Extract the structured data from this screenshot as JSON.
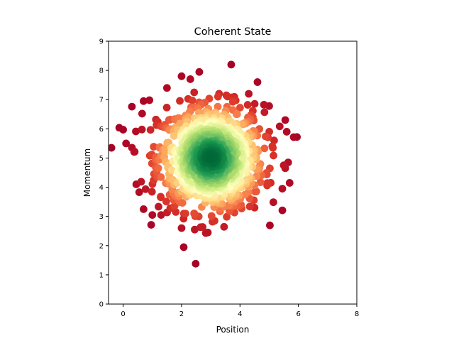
{
  "chart_data": {
    "type": "scatter",
    "title": "Coherent State",
    "xlabel": "Position",
    "ylabel": "Momentum",
    "xlim": [
      -0.5,
      8
    ],
    "ylim": [
      0,
      9
    ],
    "xticks": [
      "0",
      "2",
      "4",
      "6",
      "8"
    ],
    "xtick_values": [
      0,
      2,
      4,
      6,
      8
    ],
    "yticks": [
      "0",
      "1",
      "2",
      "3",
      "4",
      "5",
      "6",
      "7",
      "8",
      "9"
    ],
    "ytick_values": [
      0,
      1,
      2,
      3,
      4,
      5,
      6,
      7,
      8,
      9
    ],
    "grid": false,
    "legend": "none",
    "colormap": "RdYlGn",
    "color_encoding": "density: low (red) to high (green)",
    "distribution": {
      "kind": "gaussian",
      "center": [
        3.0,
        5.0
      ],
      "sigma": [
        0.9,
        0.9
      ],
      "count": 1000
    },
    "outlier_points": [
      [
        -0.4,
        5.35
      ],
      [
        0.0,
        5.97
      ],
      [
        0.1,
        5.5
      ],
      [
        0.3,
        6.76
      ],
      [
        0.45,
        4.1
      ],
      [
        0.55,
        3.83
      ],
      [
        0.7,
        3.25
      ],
      [
        0.65,
        6.52
      ],
      [
        0.7,
        6.95
      ],
      [
        0.9,
        6.98
      ],
      [
        1.0,
        3.05
      ],
      [
        1.3,
        3.05
      ],
      [
        1.5,
        7.4
      ],
      [
        2.0,
        2.6
      ],
      [
        2.0,
        7.8
      ],
      [
        2.3,
        7.7
      ],
      [
        2.45,
        2.55
      ],
      [
        2.9,
        2.45
      ],
      [
        3.7,
        8.2
      ],
      [
        4.6,
        7.6
      ],
      [
        4.5,
        3.3
      ],
      [
        5.0,
        6.78
      ],
      [
        5.45,
        3.95
      ],
      [
        5.55,
        4.65
      ],
      [
        5.7,
        4.15
      ],
      [
        5.65,
        4.85
      ],
      [
        5.55,
        6.3
      ],
      [
        5.6,
        5.9
      ],
      [
        5.95,
        5.72
      ],
      [
        4.3,
        7.2
      ]
    ]
  },
  "colors": {
    "low": "#a50026",
    "mid": "#ffffbf",
    "high": "#006837"
  }
}
